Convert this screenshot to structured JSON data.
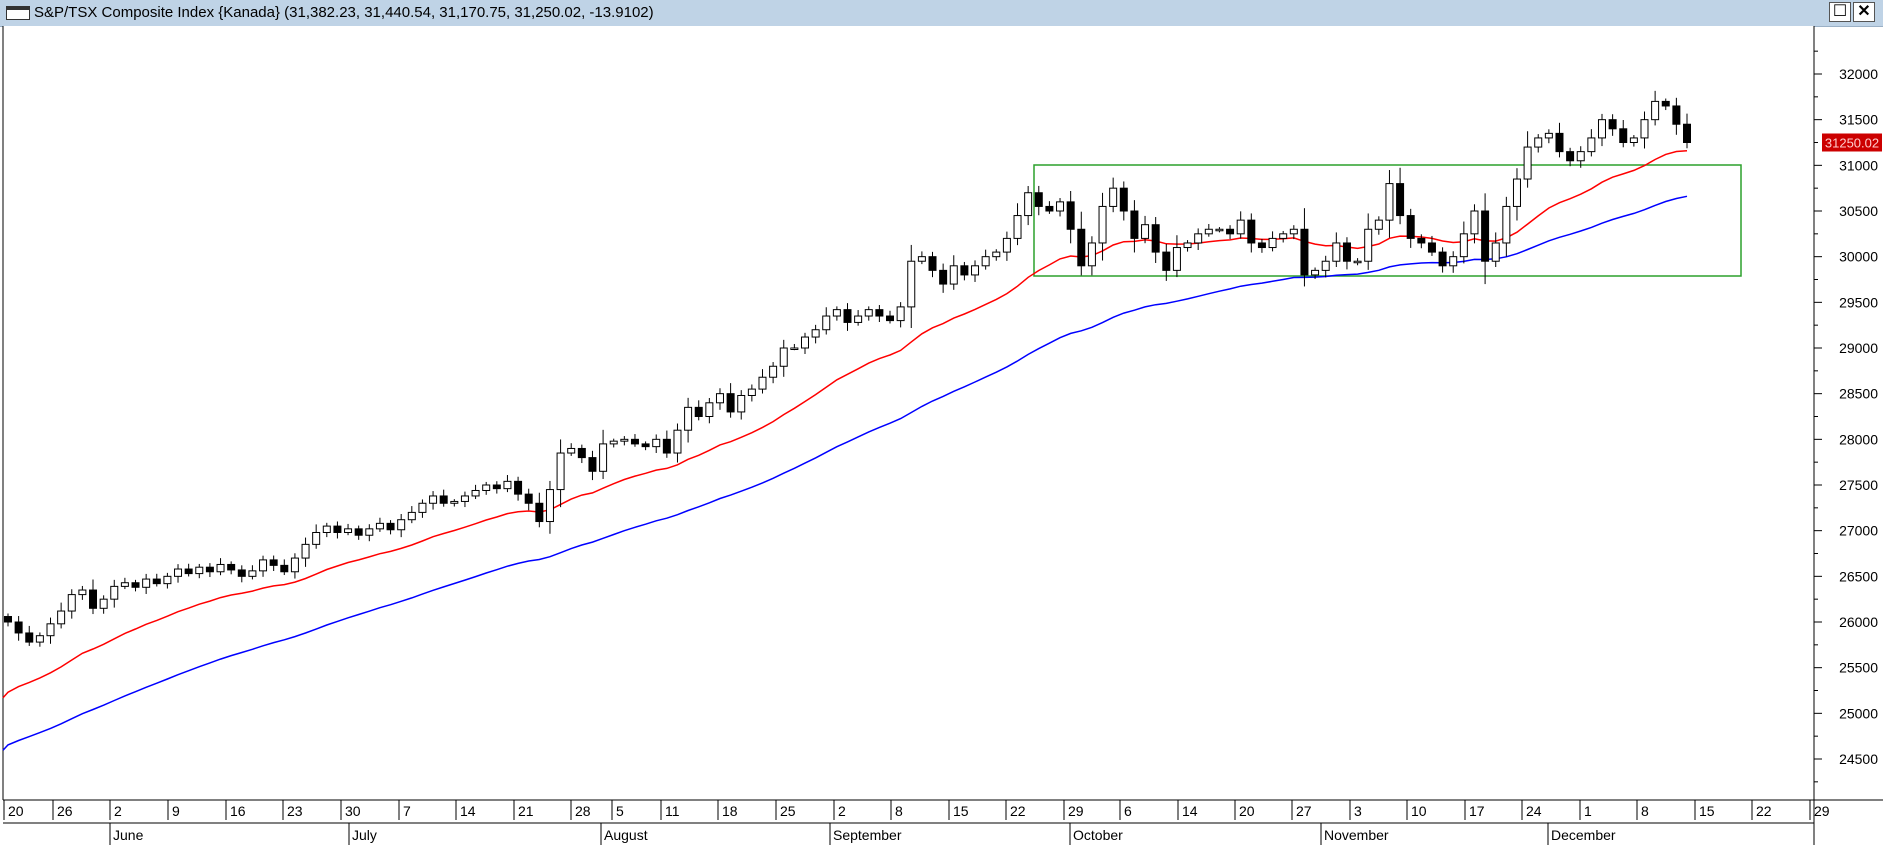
{
  "window": {
    "title": "S&P/TSX Composite Index {Kanada} (31,382.23, 31,440.54, 31,170.75, 31,250.02, -13.9102)",
    "maximize_glyph": "☐",
    "close_glyph": "✕"
  },
  "colors": {
    "ma_fast": "#ff0000",
    "ma_slow": "#0000ff",
    "range_box": "#2ca02c",
    "candle_down": "#000000",
    "candle_up": "#ffffff",
    "last_price_label": "#cc0000"
  },
  "chart_data": {
    "type": "candlestick",
    "ylim": [
      24200,
      32600
    ],
    "y_ticks": [
      24500,
      25000,
      25500,
      26000,
      26500,
      27000,
      27500,
      28000,
      28500,
      29000,
      29500,
      30000,
      30500,
      31000,
      31500,
      32000
    ],
    "last_price_label": "31250.02",
    "x_day_ticks": [
      "20",
      "26",
      "2",
      "9",
      "16",
      "23",
      "30",
      "7",
      "14",
      "21",
      "28",
      "5",
      "11",
      "18",
      "25",
      "2",
      "8",
      "15",
      "22",
      "29",
      "6",
      "14",
      "20",
      "27",
      "3",
      "10",
      "17",
      "24",
      "1",
      "8",
      "15",
      "22",
      "29"
    ],
    "x_months": [
      "June",
      "July",
      "August",
      "September",
      "October",
      "November",
      "December"
    ],
    "closes": [
      26000,
      25880,
      25780,
      25850,
      25980,
      26120,
      26300,
      26350,
      26150,
      26250,
      26390,
      26430,
      26380,
      26470,
      26420,
      26500,
      26580,
      26530,
      26600,
      26550,
      26630,
      26570,
      26500,
      26560,
      26680,
      26620,
      26550,
      26700,
      26850,
      26980,
      27050,
      26980,
      27020,
      26950,
      27020,
      27080,
      27010,
      27120,
      27200,
      27300,
      27380,
      27300,
      27320,
      27380,
      27440,
      27500,
      27460,
      27540,
      27400,
      27300,
      27100,
      27450,
      27850,
      27900,
      27800,
      27650,
      27950,
      27980,
      28000,
      27950,
      27920,
      28000,
      27850,
      28100,
      28350,
      28250,
      28400,
      28500,
      28300,
      28480,
      28550,
      28680,
      28800,
      29000,
      29000,
      29120,
      29200,
      29350,
      29420,
      29280,
      29350,
      29420,
      29350,
      29300,
      29450,
      29950,
      30000,
      29850,
      29700,
      29900,
      29800,
      29900,
      30000,
      30050,
      30200,
      30450,
      30700,
      30550,
      30500,
      30600,
      30300,
      29900,
      30150,
      30550,
      30750,
      30500,
      30200,
      30350,
      30050,
      29850,
      30100,
      30150,
      30250,
      30300,
      30300,
      30250,
      30400,
      30150,
      30100,
      30200,
      30250,
      30300,
      29800,
      29850,
      29950,
      30150,
      29950,
      29950,
      30300,
      30400,
      30800,
      30450,
      30200,
      30150,
      30050,
      29900,
      30000,
      30250,
      30500,
      29950,
      30150,
      30550,
      30850,
      31200,
      31300,
      31350,
      31150,
      31050,
      31150,
      31300,
      31500,
      31400,
      31250,
      31300,
      31500,
      31700,
      31650,
      31450,
      31250
    ]
  }
}
